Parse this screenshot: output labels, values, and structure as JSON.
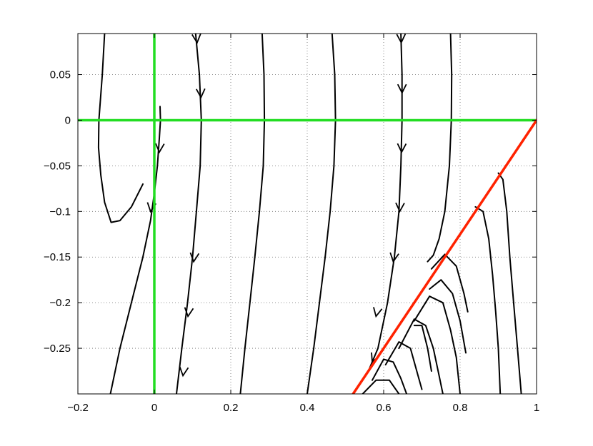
{
  "chart_data": {
    "type": "line",
    "title": "",
    "xlabel": "",
    "ylabel": "",
    "xlim": [
      -0.2,
      1.0
    ],
    "ylim": [
      -0.3,
      0.095
    ],
    "grid": true,
    "grid_style": "dotted",
    "x_ticks": [
      {
        "value": -0.2,
        "label": "−0.2"
      },
      {
        "value": 0,
        "label": "0"
      },
      {
        "value": 0.2,
        "label": "0.2"
      },
      {
        "value": 0.4,
        "label": "0.4"
      },
      {
        "value": 0.6,
        "label": "0.6"
      },
      {
        "value": 0.8,
        "label": "0.8"
      },
      {
        "value": 1.0,
        "label": "1"
      }
    ],
    "y_ticks": [
      {
        "value": 0.05,
        "label": "0.05"
      },
      {
        "value": 0,
        "label": "0"
      },
      {
        "value": -0.05,
        "label": "−0.05"
      },
      {
        "value": -0.1,
        "label": "−0.1"
      },
      {
        "value": -0.15,
        "label": "−0.15"
      },
      {
        "value": -0.2,
        "label": "−0.2"
      },
      {
        "value": -0.25,
        "label": "−0.25"
      }
    ],
    "colors": {
      "trajectory": "#000000",
      "nullcline": "#22dd22",
      "boundary": "#ff2200",
      "grid": "#666666"
    },
    "series": [
      {
        "role": "nullcline",
        "color": "#22dd22",
        "x": [
          -0.2,
          1.0
        ],
        "y": [
          0,
          0
        ]
      },
      {
        "role": "nullcline",
        "color": "#22dd22",
        "x": [
          0,
          0
        ],
        "y": [
          -0.3,
          0.095
        ]
      },
      {
        "role": "boundary",
        "color": "#ff2200",
        "x": [
          0.52,
          1.0
        ],
        "y": [
          -0.3,
          0
        ]
      },
      {
        "role": "trajectory",
        "x": [
          -0.13,
          -0.136,
          -0.145,
          -0.146,
          -0.14,
          -0.13,
          -0.113,
          -0.09,
          -0.06,
          -0.03
        ],
        "y": [
          0.095,
          0.05,
          0.0,
          -0.03,
          -0.06,
          -0.09,
          -0.112,
          -0.11,
          -0.095,
          -0.07
        ]
      },
      {
        "role": "trajectory",
        "x": [
          -0.115,
          -0.09,
          -0.06,
          -0.03,
          -0.01,
          0.0,
          0.008,
          0.013,
          0.016,
          0.015
        ],
        "y": [
          -0.3,
          -0.25,
          -0.2,
          -0.15,
          -0.11,
          -0.08,
          -0.05,
          -0.02,
          0.0,
          0.015
        ],
        "arrows": [
          {
            "x": -0.01,
            "y": -0.1
          },
          {
            "x": 0.013,
            "y": -0.035
          }
        ]
      },
      {
        "role": "trajectory",
        "x": [
          0.108,
          0.118,
          0.123,
          0.12,
          0.11,
          0.1,
          0.087,
          0.072,
          0.058
        ],
        "y": [
          0.095,
          0.05,
          0.0,
          -0.05,
          -0.1,
          -0.15,
          -0.2,
          -0.25,
          -0.3
        ],
        "arrows": [
          {
            "x": 0.112,
            "y": 0.085
          },
          {
            "x": 0.122,
            "y": 0.025
          },
          {
            "x": 0.103,
            "y": -0.155
          },
          {
            "x": 0.088,
            "y": -0.215
          },
          {
            "x": 0.075,
            "y": -0.28
          }
        ]
      },
      {
        "role": "trajectory",
        "x": [
          0.282,
          0.287,
          0.288,
          0.285,
          0.275,
          0.263,
          0.25,
          0.237,
          0.225
        ],
        "y": [
          0.095,
          0.05,
          0.0,
          -0.05,
          -0.1,
          -0.15,
          -0.2,
          -0.25,
          -0.3
        ]
      },
      {
        "role": "trajectory",
        "x": [
          0.465,
          0.472,
          0.474,
          0.47,
          0.46,
          0.447,
          0.432,
          0.417,
          0.4
        ],
        "y": [
          0.095,
          0.05,
          0.0,
          -0.05,
          -0.1,
          -0.15,
          -0.2,
          -0.25,
          -0.3
        ]
      },
      {
        "role": "trajectory",
        "x": [
          0.645,
          0.648,
          0.648,
          0.645,
          0.64,
          0.628,
          0.61,
          0.585,
          0.56
        ],
        "y": [
          0.095,
          0.05,
          0.0,
          -0.05,
          -0.1,
          -0.15,
          -0.2,
          -0.25,
          -0.275
        ],
        "arrows": [
          {
            "x": 0.646,
            "y": 0.085
          },
          {
            "x": 0.648,
            "y": 0.03
          },
          {
            "x": 0.647,
            "y": -0.035
          },
          {
            "x": 0.642,
            "y": -0.1
          },
          {
            "x": 0.625,
            "y": -0.155
          },
          {
            "x": 0.58,
            "y": -0.215
          },
          {
            "x": 0.57,
            "y": -0.265
          }
        ]
      },
      {
        "role": "trajectory",
        "x": [
          0.775,
          0.778,
          0.777,
          0.772,
          0.76,
          0.745,
          0.73,
          0.715
        ],
        "y": [
          0.095,
          0.05,
          0.0,
          -0.05,
          -0.1,
          -0.13,
          -0.148,
          -0.155
        ]
      },
      {
        "role": "trajectory",
        "x": [
          0.9,
          0.912,
          0.922,
          0.93,
          0.94,
          0.95,
          0.96
        ],
        "y": [
          -0.058,
          -0.065,
          -0.1,
          -0.15,
          -0.2,
          -0.25,
          -0.3
        ]
      },
      {
        "role": "trajectory",
        "x": [
          0.84,
          0.86,
          0.875,
          0.885,
          0.893,
          0.9,
          0.905
        ],
        "y": [
          -0.095,
          -0.1,
          -0.13,
          -0.17,
          -0.21,
          -0.25,
          -0.3
        ]
      },
      {
        "role": "trajectory",
        "x": [
          0.725,
          0.76,
          0.79,
          0.81,
          0.82
        ],
        "y": [
          -0.163,
          -0.147,
          -0.16,
          -0.19,
          -0.21
        ]
      },
      {
        "role": "trajectory",
        "x": [
          0.72,
          0.75,
          0.78,
          0.8,
          0.815
        ],
        "y": [
          -0.185,
          -0.175,
          -0.19,
          -0.22,
          -0.255
        ]
      },
      {
        "role": "trajectory",
        "x": [
          0.68,
          0.72,
          0.755,
          0.775,
          0.79,
          0.8
        ],
        "y": [
          -0.22,
          -0.193,
          -0.2,
          -0.23,
          -0.26,
          -0.3
        ]
      },
      {
        "role": "trajectory",
        "x": [
          0.64,
          0.68,
          0.71,
          0.73,
          0.745,
          0.755
        ],
        "y": [
          -0.25,
          -0.218,
          -0.225,
          -0.25,
          -0.28,
          -0.3
        ]
      },
      {
        "role": "trajectory",
        "x": [
          0.605,
          0.64,
          0.67,
          0.69,
          0.7
        ],
        "y": [
          -0.268,
          -0.243,
          -0.25,
          -0.28,
          -0.295
        ]
      },
      {
        "role": "trajectory",
        "x": [
          0.68,
          0.7,
          0.715,
          0.725
        ],
        "y": [
          -0.225,
          -0.225,
          -0.25,
          -0.275
        ]
      },
      {
        "role": "trajectory",
        "x": [
          0.57,
          0.6,
          0.625,
          0.645,
          0.66
        ],
        "y": [
          -0.285,
          -0.262,
          -0.265,
          -0.283,
          -0.3
        ]
      },
      {
        "role": "trajectory",
        "x": [
          0.545,
          0.58,
          0.615,
          0.64
        ],
        "y": [
          -0.3,
          -0.285,
          -0.285,
          -0.3
        ]
      }
    ]
  }
}
